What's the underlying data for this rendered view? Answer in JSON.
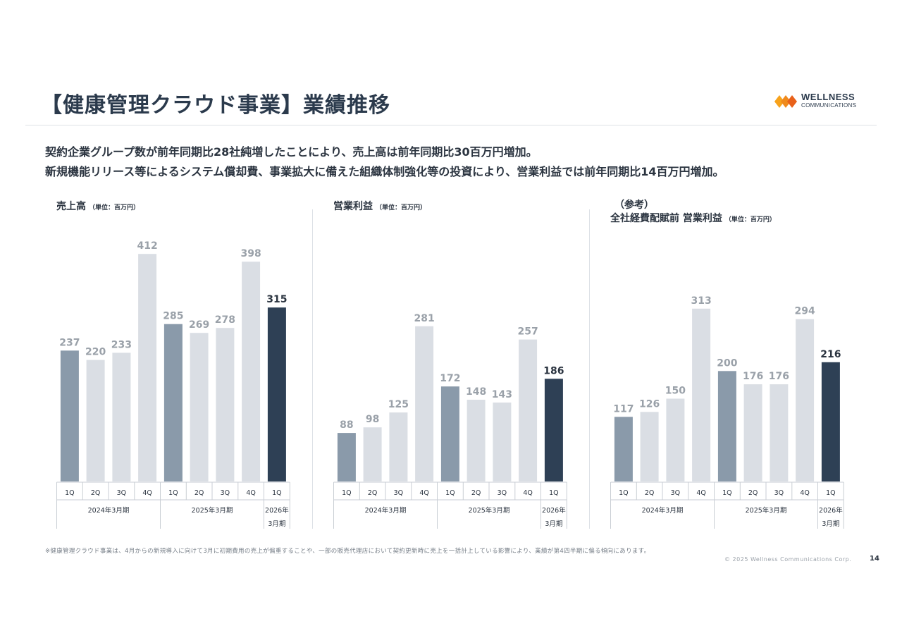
{
  "title": "【健康管理クラウド事業】業績推移",
  "logo": {
    "main": "WELLNESS",
    "sub": "COMMUNICATIONS"
  },
  "lead": [
    "契約企業グループ数が前年同期比28社純増したことにより、売上高は前年同期比30百万円増加。",
    "新規機能リリース等によるシステム償却費、事業拡大に備えた組織体制強化等の投資により、営業利益では前年同期比14百万円増加。"
  ],
  "colors": {
    "prior_1q": "#8a9aaa",
    "other": "#dadee4",
    "current": "#2e4055"
  },
  "periods": [
    {
      "label": "2024年3月期",
      "quarters": [
        "1Q",
        "2Q",
        "3Q",
        "4Q"
      ]
    },
    {
      "label": "2025年3月期",
      "quarters": [
        "1Q",
        "2Q",
        "3Q",
        "4Q"
      ]
    },
    {
      "label": "2026年\n3月期",
      "quarters": [
        "1Q"
      ]
    }
  ],
  "chart_data": [
    {
      "type": "bar",
      "title": "売上高",
      "unit": "（単位：百万円）",
      "categories": [
        "2024年3月期 1Q",
        "2024年3月期 2Q",
        "2024年3月期 3Q",
        "2024年3月期 4Q",
        "2025年3月期 1Q",
        "2025年3月期 2Q",
        "2025年3月期 3Q",
        "2025年3月期 4Q",
        "2026年3月期 1Q"
      ],
      "values": [
        237,
        220,
        233,
        412,
        285,
        269,
        278,
        398,
        315
      ],
      "ylim": [
        0,
        430
      ]
    },
    {
      "type": "bar",
      "title": "営業利益",
      "unit": "（単位：百万円）",
      "categories": [
        "2024年3月期 1Q",
        "2024年3月期 2Q",
        "2024年3月期 3Q",
        "2024年3月期 4Q",
        "2025年3月期 1Q",
        "2025年3月期 2Q",
        "2025年3月期 3Q",
        "2025年3月期 4Q",
        "2026年3月期 1Q"
      ],
      "values": [
        88,
        98,
        125,
        281,
        172,
        148,
        143,
        257,
        186
      ],
      "ylim": [
        0,
        430
      ]
    },
    {
      "type": "bar",
      "title_top": "（参考）",
      "title": "全社経費配賦前 営業利益",
      "unit": "（単位：百万円）",
      "categories": [
        "2024年3月期 1Q",
        "2024年3月期 2Q",
        "2024年3月期 3Q",
        "2024年3月期 4Q",
        "2025年3月期 1Q",
        "2025年3月期 2Q",
        "2025年3月期 3Q",
        "2025年3月期 4Q",
        "2026年3月期 1Q"
      ],
      "values": [
        117,
        126,
        150,
        313,
        200,
        176,
        176,
        294,
        216
      ],
      "ylim": [
        0,
        430
      ]
    }
  ],
  "footnote": "※健康管理クラウド事業は、4月からの新規導入に向けて3月に初期費用の売上が偏重することや、一部の販売代理店において契約更新時に売上を一括計上している影響により、業績が第4四半期に偏る傾向にあります。",
  "copyright": "© 2025 Wellness Communications Corp.",
  "page_number": "14"
}
